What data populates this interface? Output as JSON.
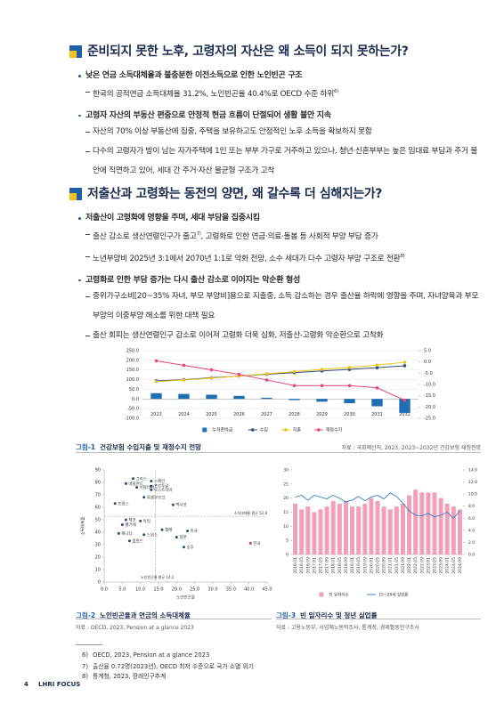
{
  "sections": [
    {
      "heading": "준비되지 못한 노후, 고령자의 자산은 왜 소득이 되지 못하는가?",
      "items": [
        {
          "text": "낮은 연금 소득대체율과 불충분한 이전소득으로 인한 노인빈곤 구조",
          "subs": [
            {
              "text": "한국의 공적연금 소득대체율 31.2%, 노인빈곤율 40.4%로 OECD 수준 하위",
              "note": "6)"
            }
          ]
        },
        {
          "text": "고령자 자산의 부동산 편중으로 안정적 현금 흐름이 단절되어 생활 불안 지속",
          "subs": [
            {
              "text": "자산의 70% 이상 부동산에 집중, 주택을 보유하고도 안정적인 노후 소득을 확보하지 못함"
            },
            {
              "text": "다수의 고령자가 방이 남는 자가주택에 1인 또는 부부 가구로 거주하고 있으나, 청년·신혼부부는 높은 임대료 부담과 주거 불안에 직면하고 있어, 세대 간 주거·자산 불균형 구조가 고착"
            }
          ]
        }
      ]
    },
    {
      "heading": "저출산과 고령화는 동전의 양면, 왜 갈수록 더 심해지는가?",
      "items": [
        {
          "text": "저출산이 고령화에 영향을 주며, 세대 부담을 집중시킴",
          "subs": [
            {
              "text": "출산 감소로 생산연령인구가 줄고",
              "note": "7)",
              "text2": ", 고령화로 인한 연금·의료·돌봄 등 사회적 부양 부담 증가"
            },
            {
              "text": "노년부양비 2025년 3:1에서 2070년 1:1로 악화 전망, 소수 세대가 다수 고령자 부양 구조로 전환",
              "note": "8)"
            }
          ]
        },
        {
          "text": "고령화로 인한 부담 증가는 다시 출산 감소로 이어지는 악순환 형성",
          "subs": [
            {
              "text": "중위가구소비[20~35% 자녀, 부모 부양비]용으로 지출중, 소득 감소하는 경우 출산율 하락에 영향을 주며, 자녀양육과 부모부양의 이중부양 해소를 위한 대책 필요"
            },
            {
              "text": "출산 회피는 생산연령인구 감소로 이어져 고령화 더욱 심화, 저출산-고령화 악순환으로 고착화"
            }
          ]
        }
      ]
    }
  ],
  "chart_data": [
    {
      "type": "combo",
      "caption_number": "그림-1",
      "caption": "건강보험 수입지출 및 재정수지 전망",
      "source": "자료 : 국회예산처, 2023, 2023~2032년 건강보험 재정전망",
      "categories": [
        "2023",
        "2024",
        "2025",
        "2026",
        "2027",
        "2028",
        "2029",
        "2030",
        "2031",
        "2032"
      ],
      "series": [
        {
          "name": "누적준비금",
          "kind": "bar",
          "color": "#1f6fb5",
          "values": [
            30,
            26,
            22,
            16,
            6,
            -6,
            -14,
            -22,
            -38,
            -72
          ]
        },
        {
          "name": "수입",
          "kind": "line",
          "color": "#2e4a7a",
          "values": [
            94,
            100,
            110,
            118,
            128,
            136,
            145,
            153,
            162,
            172
          ]
        },
        {
          "name": "지출",
          "kind": "line",
          "color": "#f0c419",
          "values": [
            90,
            98,
            108,
            118,
            130,
            142,
            153,
            163,
            175,
            190
          ]
        },
        {
          "name": "재정수지",
          "kind": "line",
          "color": "#e8457a",
          "axis": "y2",
          "values": [
            0.5,
            -1.5,
            -3.5,
            -5.5,
            -8,
            -10.5,
            -10.5,
            -10.5,
            -11.5,
            -17
          ]
        }
      ],
      "ylim": [
        -100,
        250
      ],
      "yticks": [
        {
          "value": 250,
          "label": "250.0"
        },
        {
          "value": 200,
          "label": "200.0"
        },
        {
          "value": 150,
          "label": "150.0"
        },
        {
          "value": 100,
          "label": "100.0"
        },
        {
          "value": 50,
          "label": "50.0"
        },
        {
          "value": 0,
          "label": "0.0"
        },
        {
          "value": -50,
          "label": "-50.0"
        },
        {
          "value": -100,
          "label": "-100.0"
        }
      ],
      "y2lim": [
        -25,
        5
      ],
      "y2ticks": [
        {
          "value": 5,
          "label": "5.0"
        },
        {
          "value": 0,
          "label": "0.0"
        },
        {
          "value": -5,
          "label": "-5.0"
        },
        {
          "value": -10,
          "label": "-10.0"
        },
        {
          "value": -15,
          "label": "-15.0"
        },
        {
          "value": -20,
          "label": "-20.0"
        },
        {
          "value": -25,
          "label": "-25.0"
        }
      ],
      "grid": true
    },
    {
      "type": "scatter",
      "caption_number": "그림-2",
      "caption": "노인빈곤율과 연금의 소득대체율",
      "source": "자료 : OECD, 2023, Pension at a glance 2023",
      "x_label": "노인빈곤율",
      "y_label": "소득대체율",
      "color": "#2e4a7a",
      "points": [
        {
          "label": "그리스",
          "x": 8,
          "y": 83
        },
        {
          "label": "스페인",
          "x": 13,
          "y": 81
        },
        {
          "label": "네덜란드",
          "x": 6,
          "y": 79
        },
        {
          "label": "포르투갈",
          "x": 13,
          "y": 77
        },
        {
          "label": "이탈리아",
          "x": 9,
          "y": 76
        },
        {
          "label": "오스트리아",
          "x": 13,
          "y": 74
        },
        {
          "label": "룩셈부르크",
          "x": 11,
          "y": 68
        },
        {
          "label": "프랑스",
          "x": 3,
          "y": 63
        },
        {
          "label": "멕시코",
          "x": 19,
          "y": 62
        },
        {
          "label": "체코",
          "x": 6,
          "y": 50
        },
        {
          "label": "독일",
          "x": 10,
          "y": 49
        },
        {
          "label": "벨기에",
          "x": 5,
          "y": 46
        },
        {
          "label": "칠레",
          "x": 16,
          "y": 42
        },
        {
          "label": "미국",
          "x": 23,
          "y": 41
        },
        {
          "label": "캐나다",
          "x": 4,
          "y": 39
        },
        {
          "label": "스위스",
          "x": 11,
          "y": 38
        },
        {
          "label": "일본",
          "x": 20,
          "y": 36
        },
        {
          "label": "폴란드",
          "x": 7,
          "y": 33
        },
        {
          "label": "호주",
          "x": 22,
          "y": 28
        },
        {
          "label": "한국",
          "x": 40.4,
          "y": 31.2,
          "color": "#e8304a"
        }
      ],
      "reference_lines": [
        {
          "axis": "y",
          "value": 52.8,
          "label": "소득대체율 평균 52.8"
        },
        {
          "axis": "x",
          "value": 14.2,
          "label": "노인빈곤율 평균 14.2"
        }
      ],
      "xlim": [
        0,
        45
      ],
      "xticks": [
        {
          "value": 0,
          "label": "0.0"
        },
        {
          "value": 5,
          "label": "5.0"
        },
        {
          "value": 10,
          "label": "10.0"
        },
        {
          "value": 15,
          "label": "15.0"
        },
        {
          "value": 20,
          "label": "20.0"
        },
        {
          "value": 25,
          "label": "25.0"
        },
        {
          "value": 30,
          "label": "30.0"
        },
        {
          "value": 35,
          "label": "35.0"
        },
        {
          "value": 40,
          "label": "40.0"
        },
        {
          "value": 45,
          "label": "45.0"
        }
      ],
      "ylim": [
        0,
        90
      ],
      "yticks": [
        0,
        10,
        20,
        30,
        40,
        50,
        60,
        70,
        80,
        90
      ]
    },
    {
      "type": "combo",
      "caption_number": "그림-3",
      "caption": "빈 일자리수 및 청년 실업률",
      "source": "자료 : 고용노동부, 사업체노동력조사; 통계청, 경제활동인구조사",
      "categories": [
        "2016.01",
        "2016.05",
        "2016.09",
        "2017.01",
        "2017.05",
        "2017.09",
        "2018.01",
        "2018.05",
        "2018.09",
        "2019.01",
        "2019.05",
        "2019.09",
        "2020.01",
        "2020.05",
        "2020.09",
        "2021.01",
        "2021.05",
        "2021.09",
        "2022.01",
        "2022.05",
        "2022.09",
        "2023.01",
        "2023.05",
        "2023.09",
        "2024.01",
        "2024.05",
        "2024.09"
      ],
      "series": [
        {
          "name": "빈 일자리수",
          "kind": "bar",
          "color": "#f2a0b8",
          "values": [
            18,
            16,
            17,
            15,
            16,
            17,
            19,
            18,
            19,
            17,
            17,
            18,
            20,
            19,
            17,
            16,
            17,
            18,
            21,
            23,
            22,
            22,
            22,
            20,
            18,
            17,
            16
          ]
        },
        {
          "name": "15~29세 실업률",
          "kind": "line",
          "color": "#2f7fd0",
          "axis": "y2",
          "values": [
            9.5,
            9.8,
            9.0,
            9.8,
            9.5,
            9.2,
            9.8,
            9.3,
            8.7,
            9.0,
            9.6,
            8.9,
            9.5,
            9.8,
            9.2,
            10.2,
            9.6,
            8.5,
            7.2,
            6.5,
            6.4,
            6.8,
            6.2,
            6.5,
            7.0,
            6.0,
            7.2
          ]
        }
      ],
      "ylim": [
        0,
        30
      ],
      "yticks": [
        0,
        5,
        10,
        15,
        20,
        25,
        30
      ],
      "y2lim": [
        0,
        14
      ],
      "y2ticks": [
        {
          "value": 0,
          "label": "0.0"
        },
        {
          "value": 2,
          "label": "2.0"
        },
        {
          "value": 4,
          "label": "4.0"
        },
        {
          "value": 6,
          "label": "6.0"
        },
        {
          "value": 8,
          "label": "8.0"
        },
        {
          "value": 10,
          "label": "10.0"
        },
        {
          "value": 12,
          "label": "12.0"
        },
        {
          "value": 14,
          "label": "14.0"
        }
      ],
      "grid": false
    }
  ],
  "footnotes": [
    {
      "mark": "6)",
      "text": "OECD, 2023, Pension at a glance 2023"
    },
    {
      "mark": "7)",
      "text": "출산율 0.72명(2023년), OECD 최저 수준으로 국가 소멸 위기"
    },
    {
      "mark": "8)",
      "text": "통계청, 2023, 장래인구추계"
    }
  ],
  "footer": {
    "page": "4",
    "label": "LHRI FOCUS"
  }
}
